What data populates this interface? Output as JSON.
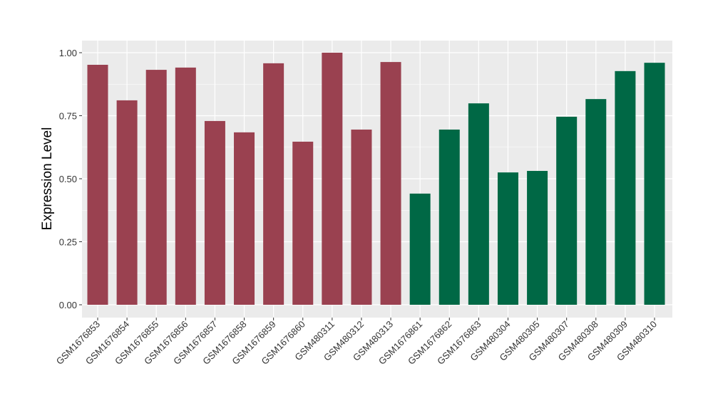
{
  "chart_data": {
    "type": "bar",
    "title": "",
    "xlabel": "",
    "ylabel": "Expression Level",
    "ylim": [
      0,
      1.05
    ],
    "yticks": [
      "0.00",
      "0.25",
      "0.50",
      "0.75",
      "1.00"
    ],
    "grid": true,
    "legend": "none",
    "categories": [
      "GSM1676853",
      "GSM1676854",
      "GSM1676855",
      "GSM1676856",
      "GSM1676857",
      "GSM1676858",
      "GSM1676859",
      "GSM1676860",
      "GSM480311",
      "GSM480312",
      "GSM480313",
      "GSM1676861",
      "GSM1676862",
      "GSM1676863",
      "GSM480304",
      "GSM480305",
      "GSM480307",
      "GSM480308",
      "GSM480309",
      "GSM480310"
    ],
    "values": [
      0.952,
      0.811,
      0.932,
      0.941,
      0.729,
      0.684,
      0.958,
      0.647,
      1.0,
      0.695,
      0.963,
      0.441,
      0.695,
      0.799,
      0.525,
      0.531,
      0.746,
      0.816,
      0.927,
      0.96
    ],
    "groups": [
      "a",
      "a",
      "a",
      "a",
      "a",
      "a",
      "a",
      "a",
      "a",
      "a",
      "a",
      "b",
      "b",
      "b",
      "b",
      "b",
      "b",
      "b",
      "b",
      "b"
    ],
    "colors": {
      "a": "#9A4150",
      "b": "#006845"
    },
    "panel_background": "#EBEBEB"
  }
}
